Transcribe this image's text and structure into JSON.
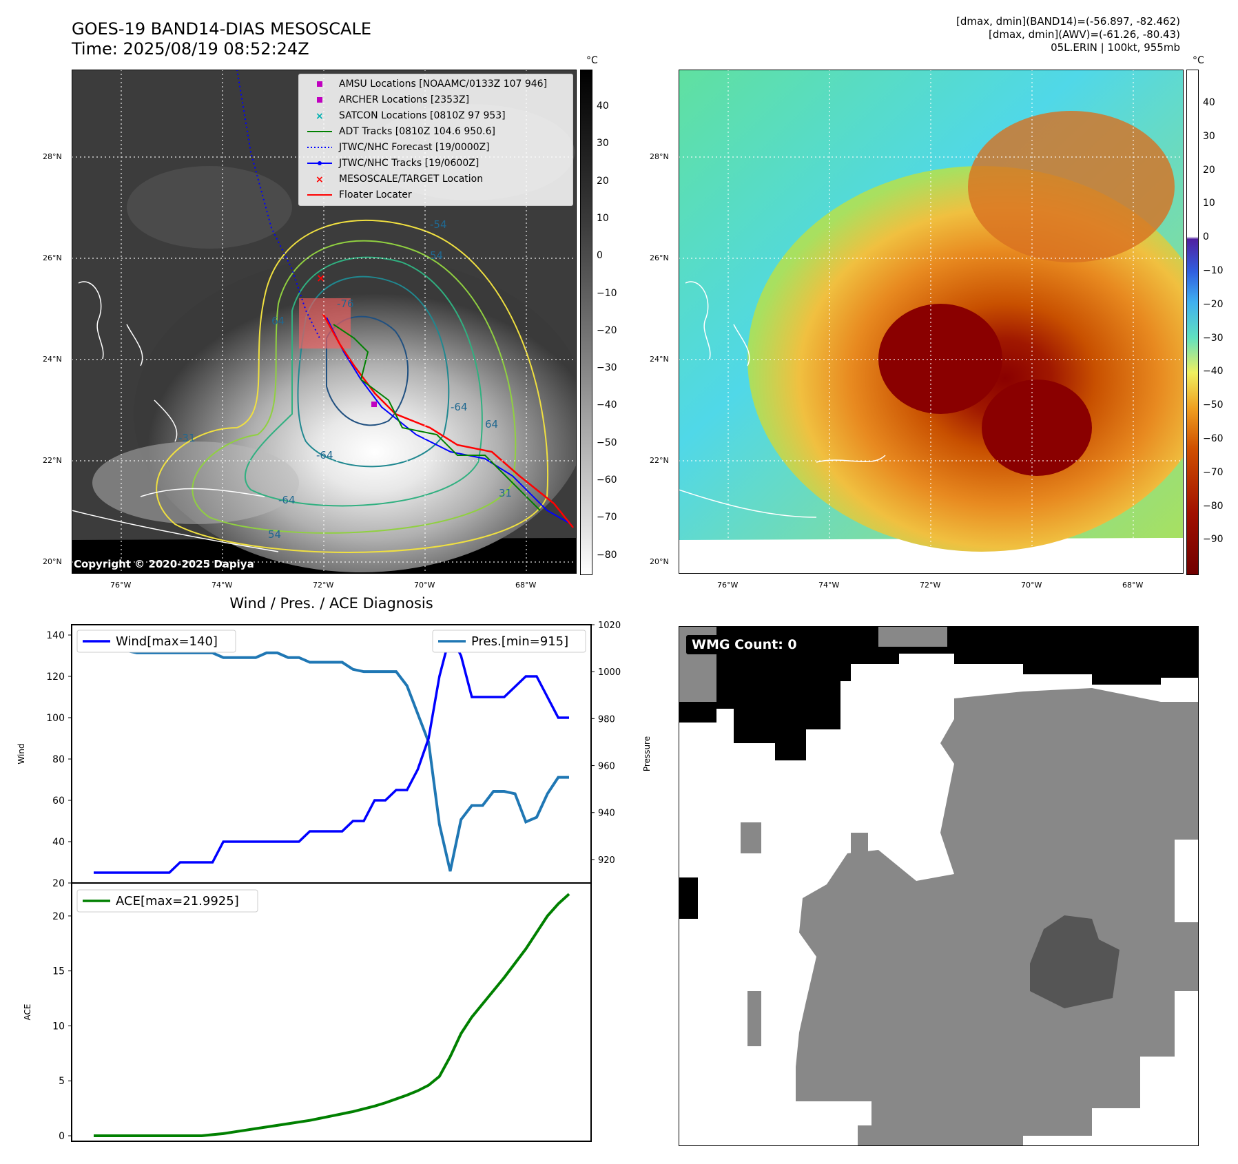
{
  "header": {
    "title_line1": "GOES-19 BAND14-DIAS MESOSCALE",
    "title_line2": "Time: 2025/08/19 08:52:24Z",
    "stats_line1": "[dmax, dmin](BAND14)=(-56.897, -82.462)",
    "stats_line2": "[dmax, dmin](AWV)=(-61.26, -80.43)",
    "stats_line3": "05L.ERIN | 100kt, 955mb"
  },
  "map": {
    "lon_ticks": [
      "76°W",
      "74°W",
      "72°W",
      "70°W",
      "68°W"
    ],
    "lat_ticks": [
      "28°N",
      "26°N",
      "24°N",
      "22°N",
      "20°N"
    ],
    "colorbar_unit": "°C",
    "gray_colorbar_ticks": [
      "40",
      "30",
      "20",
      "10",
      "0",
      "−10",
      "−20",
      "−30",
      "−40",
      "−50",
      "−60",
      "−70",
      "−80"
    ],
    "color_colorbar_ticks": [
      "40",
      "30",
      "20",
      "10",
      "0",
      "−10",
      "−20",
      "−30",
      "−40",
      "−50",
      "−60",
      "−70",
      "−80",
      "−90"
    ],
    "contour_labels": [
      "-76",
      "64",
      "-54",
      "54",
      "-64",
      "-64",
      "-31",
      "54",
      "31",
      "-64",
      "64"
    ],
    "copyright": "Copyright © 2020-2025 Dapiya",
    "legend": [
      {
        "label": "AMSU Locations [NOAAMC/0133Z 107 946]",
        "color": "#c000c0",
        "marker": "square"
      },
      {
        "label": "ARCHER Locations [2353Z]",
        "color": "#c000c0",
        "marker": "square"
      },
      {
        "label": "SATCON Locations [0810Z 97 953]",
        "color": "#00b0b0",
        "marker": "x"
      },
      {
        "label": "ADT Tracks [0810Z 104.6 950.6]",
        "color": "#008000",
        "marker": "line"
      },
      {
        "label": "JTWC/NHC Forecast [19/0000Z]",
        "color": "#0000ff",
        "marker": "dotted"
      },
      {
        "label": "JTWC/NHC Tracks [19/0600Z]",
        "color": "#0000ff",
        "marker": "line-dot"
      },
      {
        "label": "MESOSCALE/TARGET Location",
        "color": "#ff0000",
        "marker": "x"
      },
      {
        "label": "Floater Locater",
        "color": "#ff0000",
        "marker": "line"
      }
    ]
  },
  "diagnosis": {
    "title": "Wind / Pres. / ACE Diagnosis",
    "wind_ylabel": "Wind",
    "pres_ylabel": "Pressure",
    "ace_ylabel": "ACE",
    "wind_ticks": [
      "140",
      "120",
      "100",
      "80",
      "60",
      "40",
      "20"
    ],
    "pres_ticks": [
      "1020",
      "1000",
      "980",
      "960",
      "940",
      "920"
    ],
    "ace_ticks": [
      "20",
      "15",
      "10",
      "5",
      "0"
    ],
    "wind_legend": "Wind[max=140]",
    "pres_legend": "Pres.[min=915]",
    "ace_legend": "ACE[max=21.9925]"
  },
  "wmg": {
    "label": "WMG Count: 0"
  },
  "chart_data": [
    {
      "type": "line",
      "name": "wind",
      "x": [
        0,
        1,
        2,
        3,
        4,
        5,
        6,
        7,
        8,
        9,
        10,
        11,
        12,
        13,
        14,
        15,
        16,
        17,
        18,
        19,
        20,
        21,
        22,
        23,
        24,
        25,
        26,
        27,
        28,
        29,
        30,
        31,
        32,
        33,
        34,
        35,
        36,
        37,
        38,
        39,
        40,
        41,
        42,
        43,
        44
      ],
      "series": [
        {
          "name": "Wind[max=140]",
          "color": "#0000ff",
          "values": [
            25,
            25,
            25,
            25,
            25,
            25,
            25,
            25,
            30,
            30,
            30,
            30,
            40,
            40,
            40,
            40,
            40,
            40,
            40,
            40,
            45,
            45,
            45,
            45,
            50,
            50,
            60,
            60,
            65,
            65,
            75,
            90,
            120,
            140,
            130,
            110,
            110,
            110,
            110,
            115,
            120,
            120,
            110,
            100,
            100
          ]
        }
      ],
      "ylim": [
        20,
        145
      ]
    },
    {
      "type": "line",
      "name": "pressure",
      "x": [
        0,
        1,
        2,
        3,
        4,
        5,
        6,
        7,
        8,
        9,
        10,
        11,
        12,
        13,
        14,
        15,
        16,
        17,
        18,
        19,
        20,
        21,
        22,
        23,
        24,
        25,
        26,
        27,
        28,
        29,
        30,
        31,
        32,
        33,
        34,
        35,
        36,
        37,
        38,
        39,
        40,
        41,
        42,
        43,
        44
      ],
      "series": [
        {
          "name": "Pres.[min=915]",
          "color": "#1f77b4",
          "values": [
            1015,
            1015,
            1010,
            1009,
            1008,
            1008,
            1008,
            1008,
            1008,
            1008,
            1008,
            1008,
            1006,
            1006,
            1006,
            1006,
            1008,
            1008,
            1006,
            1006,
            1004,
            1004,
            1004,
            1004,
            1001,
            1000,
            1000,
            1000,
            1000,
            994,
            982,
            970,
            935,
            915,
            937,
            943,
            943,
            949,
            949,
            948,
            936,
            938,
            948,
            955,
            955
          ],
          "ylim": [
            910,
            1020
          ]
        }
      ]
    },
    {
      "type": "line",
      "name": "ace",
      "x": [
        0,
        1,
        2,
        3,
        4,
        5,
        6,
        7,
        8,
        9,
        10,
        11,
        12,
        13,
        14,
        15,
        16,
        17,
        18,
        19,
        20,
        21,
        22,
        23,
        24,
        25,
        26,
        27,
        28,
        29,
        30,
        31,
        32,
        33,
        34,
        35,
        36,
        37,
        38,
        39,
        40,
        41,
        42,
        43,
        44
      ],
      "series": [
        {
          "name": "ACE[max=21.9925]",
          "color": "#008000",
          "values": [
            0,
            0,
            0,
            0,
            0,
            0,
            0,
            0,
            0,
            0,
            0,
            0.1,
            0.2,
            0.35,
            0.5,
            0.65,
            0.8,
            0.95,
            1.1,
            1.25,
            1.4,
            1.6,
            1.8,
            2.0,
            2.2,
            2.45,
            2.7,
            3.0,
            3.35,
            3.7,
            4.1,
            4.6,
            5.4,
            7.2,
            9.3,
            10.8,
            12.0,
            13.2,
            14.4,
            15.7,
            17.0,
            18.5,
            20.0,
            21.1,
            21.9925
          ]
        }
      ],
      "ylim": [
        -0.5,
        23
      ]
    }
  ]
}
